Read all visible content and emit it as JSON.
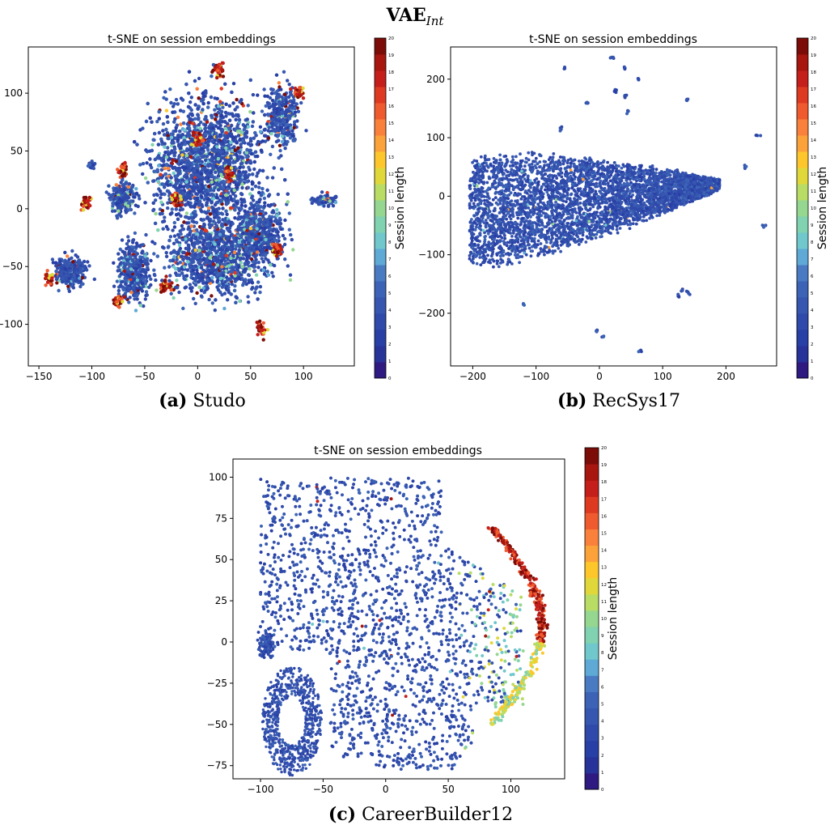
{
  "figure": {
    "title_main": "VAE",
    "title_sub": "Int"
  },
  "colorbar": {
    "label": "Session length",
    "ticks": [
      "0",
      "1",
      "2",
      "3",
      "4",
      "5",
      "6",
      "7",
      "8",
      "9",
      "10",
      "11",
      "12",
      "13",
      "14",
      "15",
      "16",
      "17",
      "18",
      "19",
      "20"
    ],
    "colors": [
      "#2e1a80",
      "#28339a",
      "#283fa6",
      "#2f4aaa",
      "#3656b0",
      "#3c63b6",
      "#4a7bc2",
      "#5ea9d6",
      "#70c8cc",
      "#80d2b0",
      "#95d690",
      "#b8dc64",
      "#e0d83a",
      "#fdc72c",
      "#fca23a",
      "#f9813c",
      "#ef5a2e",
      "#de3a22",
      "#c41f1b",
      "#a7160f",
      "#7c0c08"
    ]
  },
  "chart_data": [
    {
      "type": "scatter",
      "title": "t-SNE on session embeddings",
      "caption_letter": "(a)",
      "caption_name": "Studo",
      "xlim": [
        -160,
        148
      ],
      "ylim": [
        -136,
        140
      ],
      "xticks": [
        -150,
        -100,
        -50,
        0,
        50,
        100
      ],
      "yticks": [
        -100,
        -50,
        0,
        50,
        100
      ],
      "color_value": "session length (0–20)",
      "clusters": [
        {
          "x": [
            -55,
            95
          ],
          "y": [
            -100,
            125
          ],
          "length_mix": "mostly 2–5, frequent 8–20 patches"
        },
        {
          "x": [
            -145,
            -95
          ],
          "y": [
            -75,
            -35
          ],
          "length_mix": "mostly 2–5, edges 15–20"
        },
        {
          "x": [
            -75,
            -40
          ],
          "y": [
            -90,
            0
          ],
          "length_mix": "mostly 2–5, edges 15–20"
        },
        {
          "x": [
            110,
            135
          ],
          "y": [
            0,
            15
          ],
          "length_mix": "mostly 2–5"
        }
      ]
    },
    {
      "type": "scatter",
      "title": "t-SNE on session embeddings",
      "caption_letter": "(b)",
      "caption_name": "RecSys17",
      "xlim": [
        -235,
        280
      ],
      "ylim": [
        -290,
        255
      ],
      "xticks": [
        -200,
        -100,
        0,
        100,
        200
      ],
      "yticks": [
        -200,
        -100,
        0,
        100,
        200
      ],
      "color_value": "session length (0–20)",
      "clusters": [
        {
          "x": [
            -215,
            190
          ],
          "y": [
            -185,
            135
          ],
          "length_mix": "almost all 2–5, a few 7–12 points"
        },
        {
          "x": [
            10,
            60
          ],
          "y": [
            120,
            240
          ],
          "length_mix": "2–5, outlier clusters"
        },
        {
          "x": [
            -10,
            250
          ],
          "y": [
            -265,
            -160
          ],
          "length_mix": "2–5, sparse outliers"
        }
      ]
    },
    {
      "type": "scatter",
      "title": "t-SNE on session embeddings",
      "caption_letter": "(c)",
      "caption_name": "CareerBuilder12",
      "xlim": [
        -122,
        143
      ],
      "ylim": [
        -83,
        111
      ],
      "xticks": [
        -100,
        -50,
        0,
        50,
        100
      ],
      "yticks": [
        -75,
        -50,
        -25,
        0,
        25,
        50,
        75,
        100
      ],
      "color_value": "session length (0–20)",
      "clusters": [
        {
          "x": [
            -100,
            130
          ],
          "y": [
            -78,
            100
          ],
          "length_mix": "west mostly 2–4; east gradient to 8–13; right rim 14–20"
        },
        {
          "x": [
            -110,
            -60
          ],
          "y": [
            -80,
            5
          ],
          "length_mix": "ring of 2–4"
        }
      ]
    }
  ]
}
